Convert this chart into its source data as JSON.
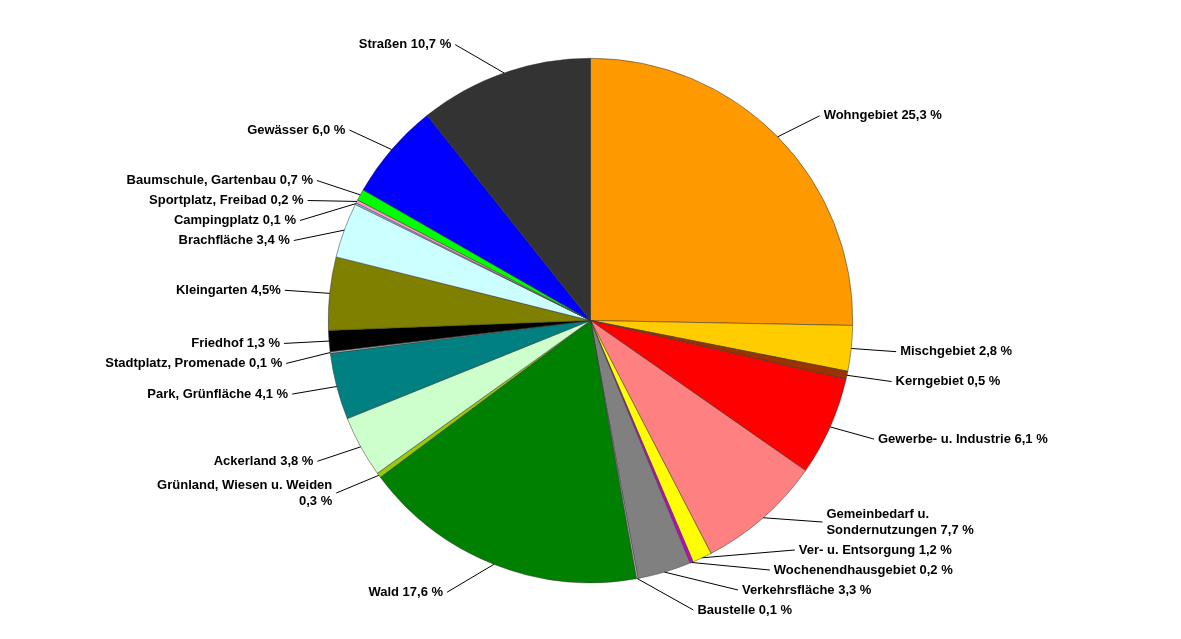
{
  "chart_data": {
    "type": "pie",
    "categories": [
      "Wohngebiet",
      "Mischgebiet",
      "Kerngebiet",
      "Gewerbe- u. Industrie",
      "Gemeinbedarf u. Sondernutzungen",
      "Ver- u. Entsorgung",
      "Wochenendhausgebiet",
      "Verkehrsfläche",
      "Baustelle",
      "Wald",
      "Grünland, Wiesen u. Weiden",
      "Ackerland",
      "Park, Grünfläche",
      "Stadtplatz, Promenade",
      "Friedhof",
      "Kleingarten",
      "Brachfläche",
      "Campingplatz",
      "Sportplatz, Freibad",
      "Baumschule, Gartenbau",
      "Gewässer",
      "Straßen"
    ],
    "values": [
      25.3,
      2.8,
      0.5,
      6.1,
      7.7,
      1.2,
      0.2,
      3.3,
      0.1,
      17.6,
      0.3,
      3.8,
      4.1,
      0.1,
      1.3,
      4.5,
      3.4,
      0.1,
      0.2,
      0.7,
      6.0,
      10.7
    ],
    "value_labels": [
      "25,3 %",
      "2,8 %",
      "0,5 %",
      "6,1 %",
      "7,7 %",
      "1,2 %",
      "0,2 %",
      "3,3 %",
      "0,1 %",
      "17,6 %",
      "0,3 %",
      "3,8 %",
      "4,1 %",
      "0,1 %",
      "1,3 %",
      "4,5%",
      "3,4 %",
      "0,1 %",
      "0,2 %",
      "0,7 %",
      "6,0 %",
      "10,7 %"
    ],
    "colors": [
      "#ff9900",
      "#ffcc00",
      "#993300",
      "#ff0000",
      "#ff8080",
      "#ffff00",
      "#cc00cc",
      "#808080",
      "#c0c0c0",
      "#008000",
      "#99cc00",
      "#ccffcc",
      "#008080",
      "#c0c0c0",
      "#000000",
      "#808000",
      "#ccffff",
      "#99ccff",
      "#ff99cc",
      "#00ff00",
      "#0000ff",
      "#333333"
    ],
    "legend": false
  }
}
